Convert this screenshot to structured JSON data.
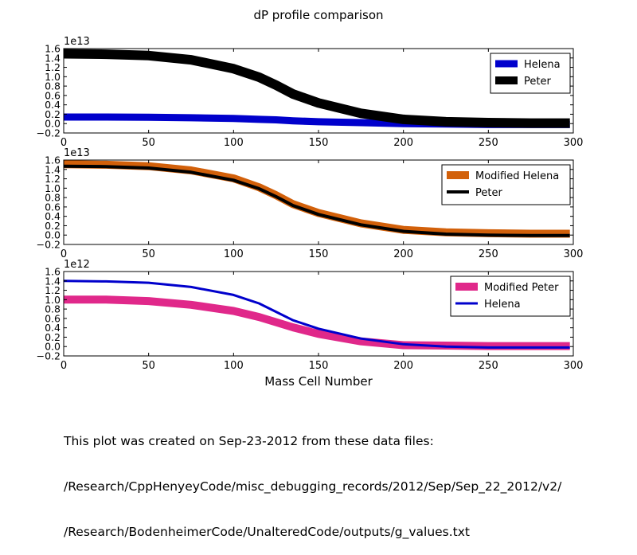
{
  "figure": {
    "title": "dP profile comparison",
    "xlabel": "Mass Cell Number",
    "caption_lines": [
      "This plot was created on Sep-23-2012 from these data files:",
      "/Research/CppHenyeyCode/misc_debugging_records/2012/Sep/Sep_22_2012/v2/",
      "/Research/BodenheimerCode/UnalteredCode/outputs/g_values.txt"
    ]
  },
  "chart_data": [
    {
      "type": "line",
      "title": "",
      "xlabel": "",
      "ylabel": "",
      "offset_text": "1e13",
      "xlim": [
        0,
        300
      ],
      "ylim": [
        -0.2,
        1.6
      ],
      "xticks": [
        0,
        50,
        100,
        150,
        200,
        250,
        300
      ],
      "yticks": [
        -0.2,
        0.0,
        0.2,
        0.4,
        0.6,
        0.8,
        1.0,
        1.2,
        1.4,
        1.6
      ],
      "ytick_labels": [
        "−0.2",
        "0.0",
        "0.2",
        "0.4",
        "0.6",
        "0.8",
        "1.0",
        "1.2",
        "1.4",
        "1.6"
      ],
      "legend_position": "top-right",
      "grid": false,
      "x": [
        0,
        25,
        50,
        75,
        100,
        115,
        125,
        135,
        150,
        175,
        200,
        225,
        250,
        275,
        298
      ],
      "series": [
        {
          "name": "Helena",
          "color": "#0000cc",
          "linewidth": 9,
          "values": [
            0.14,
            0.14,
            0.135,
            0.125,
            0.11,
            0.09,
            0.08,
            0.06,
            0.04,
            0.02,
            0.0,
            -0.01,
            -0.02,
            -0.02,
            -0.02
          ]
        },
        {
          "name": "Peter",
          "color": "#000000",
          "linewidth": 12,
          "values": [
            1.49,
            1.48,
            1.45,
            1.36,
            1.17,
            0.99,
            0.82,
            0.63,
            0.44,
            0.22,
            0.09,
            0.04,
            0.02,
            0.01,
            0.01
          ]
        }
      ]
    },
    {
      "type": "line",
      "title": "",
      "xlabel": "",
      "ylabel": "",
      "offset_text": "1e13",
      "xlim": [
        0,
        300
      ],
      "ylim": [
        -0.2,
        1.6
      ],
      "xticks": [
        0,
        50,
        100,
        150,
        200,
        250,
        300
      ],
      "yticks": [
        -0.2,
        0.0,
        0.2,
        0.4,
        0.6,
        0.8,
        1.0,
        1.2,
        1.4,
        1.6
      ],
      "ytick_labels": [
        "−0.2",
        "0.0",
        "0.2",
        "0.4",
        "0.6",
        "0.8",
        "1.0",
        "1.2",
        "1.4",
        "1.6"
      ],
      "legend_position": "top-right",
      "grid": false,
      "x": [
        0,
        25,
        50,
        75,
        100,
        115,
        125,
        135,
        150,
        175,
        200,
        225,
        250,
        275,
        298
      ],
      "series": [
        {
          "name": "Modified Helena",
          "color": "#d2600a",
          "linewidth": 10,
          "values": [
            1.51,
            1.5,
            1.47,
            1.38,
            1.21,
            1.02,
            0.85,
            0.66,
            0.47,
            0.25,
            0.11,
            0.06,
            0.04,
            0.03,
            0.03
          ]
        },
        {
          "name": "Peter",
          "color": "#000000",
          "linewidth": 4,
          "values": [
            1.47,
            1.46,
            1.43,
            1.34,
            1.17,
            0.99,
            0.82,
            0.63,
            0.44,
            0.22,
            0.08,
            0.02,
            0.0,
            -0.01,
            -0.01
          ]
        }
      ]
    },
    {
      "type": "line",
      "title": "",
      "xlabel": "Mass Cell Number",
      "ylabel": "",
      "offset_text": "1e12",
      "xlim": [
        0,
        300
      ],
      "ylim": [
        -0.2,
        1.6
      ],
      "xticks": [
        0,
        50,
        100,
        150,
        200,
        250,
        300
      ],
      "yticks": [
        -0.2,
        0.0,
        0.2,
        0.4,
        0.6,
        0.8,
        1.0,
        1.2,
        1.4,
        1.6
      ],
      "ytick_labels": [
        "−0.2",
        "0.0",
        "0.2",
        "0.4",
        "0.6",
        "0.8",
        "1.0",
        "1.2",
        "1.4",
        "1.6"
      ],
      "legend_position": "top-right",
      "grid": false,
      "x": [
        0,
        25,
        50,
        75,
        100,
        115,
        125,
        135,
        150,
        175,
        200,
        225,
        250,
        275,
        298
      ],
      "series": [
        {
          "name": "Modified Peter",
          "color": "#e0288a",
          "linewidth": 10,
          "values": [
            1.0,
            1.0,
            0.97,
            0.89,
            0.76,
            0.63,
            0.52,
            0.41,
            0.27,
            0.11,
            0.03,
            0.02,
            0.01,
            0.01,
            0.01
          ]
        },
        {
          "name": "Helena",
          "color": "#0000cc",
          "linewidth": 3,
          "values": [
            1.4,
            1.39,
            1.36,
            1.27,
            1.1,
            0.92,
            0.74,
            0.56,
            0.38,
            0.17,
            0.05,
            0.0,
            -0.02,
            -0.02,
            -0.02
          ]
        }
      ]
    }
  ]
}
